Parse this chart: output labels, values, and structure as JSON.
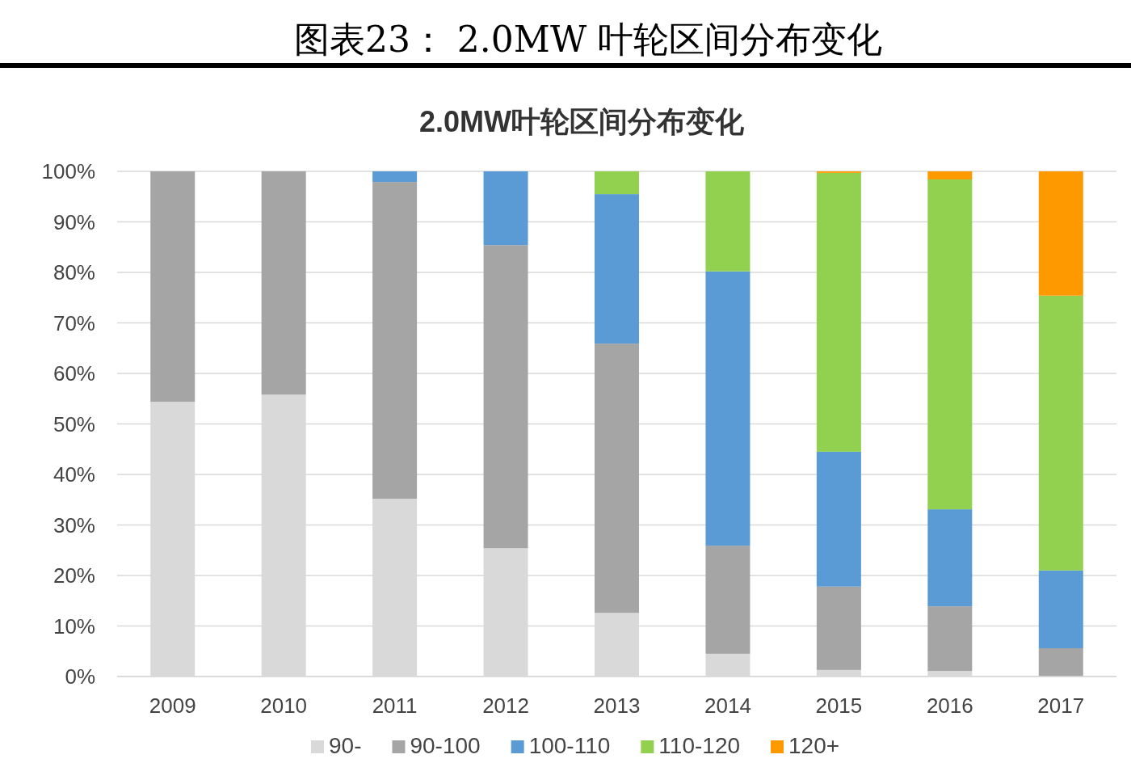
{
  "chart_data": {
    "type": "bar",
    "title": "图表23：  2.0MW 叶轮区间分布变化",
    "subtitle": "2.0MW叶轮区间分布变化",
    "stacked": true,
    "categories": [
      "2009",
      "2010",
      "2011",
      "2012",
      "2013",
      "2014",
      "2015",
      "2016",
      "2017"
    ],
    "series": [
      {
        "name": "90-",
        "color": "#d9d9d9",
        "values": [
          54.4,
          55.8,
          35.2,
          25.4,
          12.6,
          4.5,
          1.3,
          1.1,
          0
        ]
      },
      {
        "name": "90-100",
        "color": "#a5a5a5",
        "values": [
          45.6,
          44.2,
          62.7,
          60,
          53.3,
          21.4,
          16.5,
          12.8,
          5.6
        ]
      },
      {
        "name": "100-110",
        "color": "#5b9bd5",
        "values": [
          0,
          0,
          2.1,
          14.6,
          29.6,
          54.3,
          26.7,
          19.2,
          15.4
        ]
      },
      {
        "name": "110-120",
        "color": "#92d050",
        "values": [
          0,
          0,
          0,
          0,
          4.5,
          19.8,
          55.2,
          65.3,
          54.4
        ]
      },
      {
        "name": "120+",
        "color": "#ff9900",
        "values": [
          0,
          0,
          0,
          0,
          0,
          0,
          0.3,
          1.6,
          24.6
        ]
      }
    ],
    "ylim": [
      0,
      100
    ],
    "yticks": [
      {
        "value": 0,
        "label": "0%"
      },
      {
        "value": 10,
        "label": "10%"
      },
      {
        "value": 20,
        "label": "20%"
      },
      {
        "value": 30,
        "label": "30%"
      },
      {
        "value": 40,
        "label": "40%"
      },
      {
        "value": 50,
        "label": "50%"
      },
      {
        "value": 60,
        "label": "60%"
      },
      {
        "value": 70,
        "label": "70%"
      },
      {
        "value": 80,
        "label": "80%"
      },
      {
        "value": 90,
        "label": "90%"
      },
      {
        "value": 100,
        "label": "100%"
      }
    ],
    "grid": "y",
    "legend": "bottom"
  }
}
